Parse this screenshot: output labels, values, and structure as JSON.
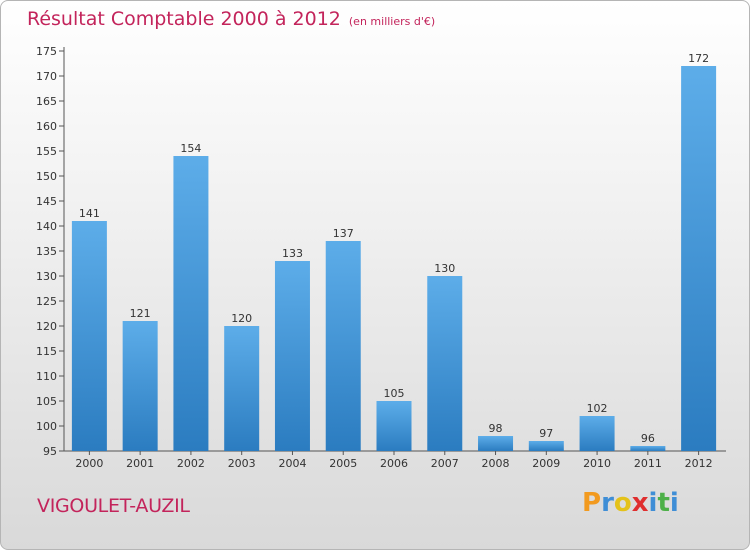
{
  "title": "Résultat Comptable 2000 à 2012",
  "unit_note": "(en milliers d'€)",
  "commune": "VIGOULET-AUZIL",
  "logo": {
    "text": "Proxiti",
    "letters": [
      {
        "ch": "P",
        "color": "#f29a1f"
      },
      {
        "ch": "r",
        "color": "#3f8ed6"
      },
      {
        "ch": "o",
        "color": "#e4c21a"
      },
      {
        "ch": "x",
        "color": "#df2e2e"
      },
      {
        "ch": "i",
        "color": "#3f8ed6"
      },
      {
        "ch": "t",
        "color": "#4db049"
      },
      {
        "ch": "i",
        "color": "#3f8ed6"
      }
    ]
  },
  "colors": {
    "title": "#c3245b",
    "bar_top": "#5dade9",
    "bar_bottom": "#2b7cc0"
  },
  "chart_data": {
    "type": "bar",
    "categories": [
      "2000",
      "2001",
      "2002",
      "2003",
      "2004",
      "2005",
      "2006",
      "2007",
      "2008",
      "2009",
      "2010",
      "2011",
      "2012"
    ],
    "values": [
      141,
      121,
      154,
      120,
      133,
      137,
      105,
      130,
      98,
      97,
      102,
      96,
      172
    ],
    "ylim": [
      95,
      175
    ],
    "yticks": [
      95,
      100,
      105,
      110,
      115,
      120,
      125,
      130,
      135,
      140,
      145,
      150,
      155,
      160,
      165,
      170,
      175
    ],
    "grid": false,
    "xlabel": "",
    "ylabel": ""
  }
}
